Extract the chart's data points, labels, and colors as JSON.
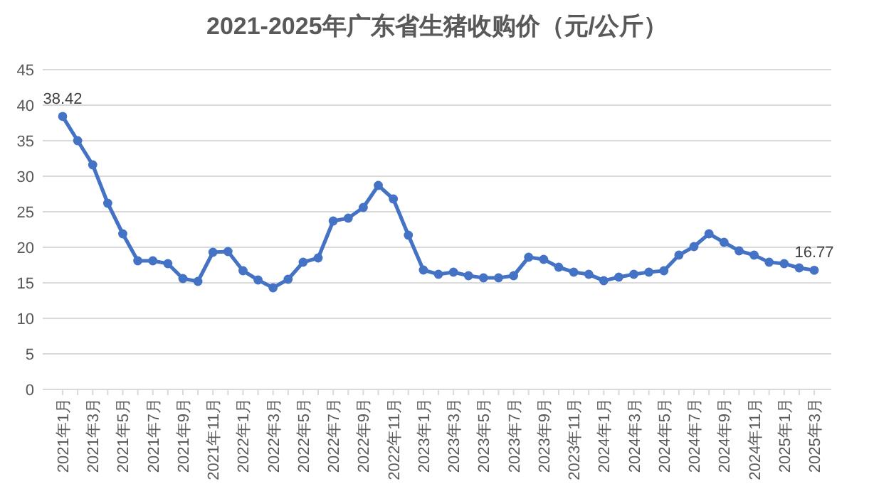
{
  "chart_data": {
    "type": "line",
    "title": "2021-2025年广东省生猪收购价（元/公斤）",
    "categories": [
      "2021年1月",
      null,
      "2021年3月",
      null,
      "2021年5月",
      null,
      "2021年7月",
      null,
      "2021年9月",
      null,
      "2021年11月",
      null,
      "2022年1月",
      null,
      "2022年3月",
      null,
      "2022年5月",
      null,
      "2022年7月",
      null,
      "2022年9月",
      null,
      "2022年11月",
      null,
      "2023年1月",
      null,
      "2023年3月",
      null,
      "2023年5月",
      null,
      "2023年7月",
      null,
      "2023年9月",
      null,
      "2023年11月",
      null,
      "2024年1月",
      null,
      "2024年3月",
      null,
      "2024年5月",
      null,
      "2024年7月",
      null,
      "2024年9月",
      null,
      "2024年11月",
      null,
      "2025年1月",
      null,
      "2025年3月"
    ],
    "series": [
      {
        "color": "#4472c4",
        "values": [
          38.42,
          35.0,
          31.6,
          26.2,
          21.9,
          18.1,
          18.1,
          17.7,
          15.6,
          15.2,
          19.3,
          19.4,
          16.7,
          15.4,
          14.3,
          15.5,
          17.9,
          18.5,
          23.7,
          24.1,
          25.6,
          28.7,
          26.8,
          21.7,
          16.8,
          16.2,
          16.5,
          16.0,
          15.7,
          15.7,
          16.0,
          18.6,
          18.3,
          17.2,
          16.5,
          16.2,
          15.3,
          15.8,
          16.2,
          16.5,
          16.7,
          18.9,
          20.1,
          21.9,
          20.7,
          19.5,
          18.9,
          17.9,
          17.7,
          17.1,
          16.77
        ],
        "value_labels": [
          "38.42",
          null,
          null,
          null,
          null,
          null,
          null,
          null,
          null,
          null,
          null,
          null,
          null,
          null,
          null,
          null,
          null,
          null,
          null,
          null,
          null,
          null,
          null,
          null,
          null,
          null,
          null,
          null,
          null,
          null,
          null,
          null,
          null,
          null,
          null,
          null,
          null,
          null,
          null,
          null,
          null,
          null,
          null,
          null,
          null,
          null,
          null,
          null,
          null,
          null,
          "16.77"
        ]
      }
    ],
    "ylim": [
      0,
      45
    ],
    "yticks": [
      0,
      5,
      10,
      15,
      20,
      25,
      30,
      35,
      40,
      45
    ],
    "grid": "y",
    "marker": "circle",
    "line_style": "solid"
  }
}
